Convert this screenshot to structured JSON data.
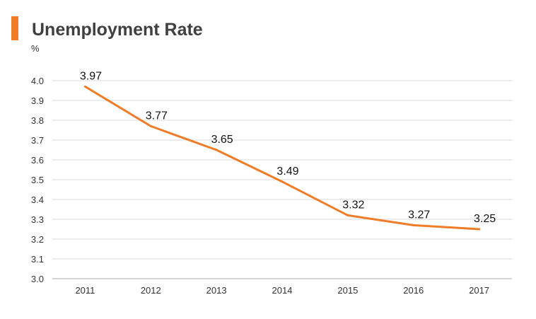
{
  "title": "Unemployment Rate",
  "unit": "%",
  "colors": {
    "accent": "#f07c28",
    "line": "#f07c28",
    "grid": "#d9d9d9",
    "axis": "#aaaaaa"
  },
  "chart_data": {
    "type": "line",
    "title": "Unemployment Rate",
    "ylabel": "%",
    "xlabel": "",
    "categories": [
      "2011",
      "2012",
      "2013",
      "2014",
      "2015",
      "2016",
      "2017"
    ],
    "series": [
      {
        "values": [
          3.97,
          3.77,
          3.65,
          3.49,
          3.32,
          3.27,
          3.25
        ],
        "data_labels": [
          "3.97",
          "3.77",
          "3.65",
          "3.49",
          "3.32",
          "3.27",
          "3.25"
        ]
      }
    ],
    "ylim": [
      3.0,
      4.0
    ],
    "yticks": [
      "3.0",
      "3.1",
      "3.2",
      "3.3",
      "3.4",
      "3.5",
      "3.6",
      "3.7",
      "3.8",
      "3.9",
      "4.0"
    ],
    "grid": true,
    "legend": "none"
  }
}
